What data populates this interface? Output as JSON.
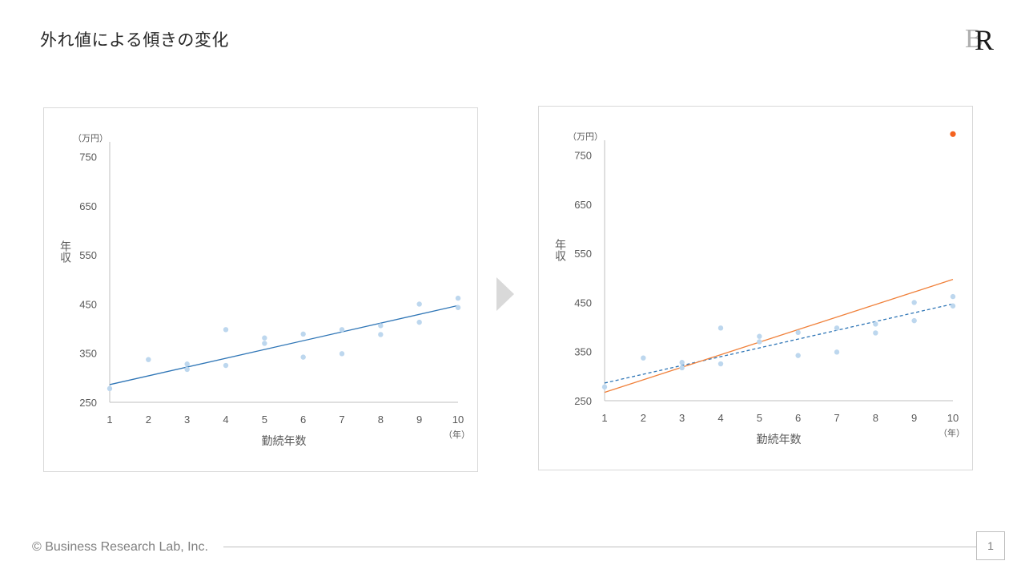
{
  "header": {
    "title": "外れ値による傾きの変化"
  },
  "logo": {
    "text": "R",
    "name": "brl-logo"
  },
  "footer": {
    "copyright": "© Business Research Lab, Inc.",
    "page": "1"
  },
  "colors": {
    "points": "#bdd7ee",
    "outlier": "#f4621f",
    "trend": "#2e75b6",
    "trend_outlier": "#f0803a",
    "axis": "#bfbfbf",
    "text": "#595959"
  },
  "chart_data": [
    {
      "type": "scatter",
      "title": "",
      "xlabel": "勤続年数",
      "ylabel": "年収",
      "x_unit": "（年）",
      "y_unit": "（万円）",
      "xlim": [
        1,
        10
      ],
      "ylim": [
        250,
        800
      ],
      "x_ticks": [
        1,
        2,
        3,
        4,
        5,
        6,
        7,
        8,
        9,
        10
      ],
      "y_ticks": [
        250,
        350,
        450,
        550,
        650,
        750
      ],
      "series": [
        {
          "role": "data",
          "points": [
            [
              1,
              278
            ],
            [
              2,
              337
            ],
            [
              3,
              328
            ],
            [
              3,
              317
            ],
            [
              4,
              398
            ],
            [
              4,
              325
            ],
            [
              5,
              381
            ],
            [
              5,
              370
            ],
            [
              6,
              389
            ],
            [
              6,
              342
            ],
            [
              7,
              398
            ],
            [
              7,
              349
            ],
            [
              8,
              406
            ],
            [
              8,
              388
            ],
            [
              9,
              450
            ],
            [
              9,
              413
            ],
            [
              10,
              462
            ],
            [
              10,
              443
            ]
          ]
        }
      ],
      "trendlines": [
        {
          "role": "fit",
          "style": "solid",
          "from": [
            1,
            286
          ],
          "to": [
            10,
            447
          ]
        }
      ]
    },
    {
      "type": "scatter",
      "title": "",
      "xlabel": "勤続年数",
      "ylabel": "年収",
      "x_unit": "（年）",
      "y_unit": "（万円）",
      "xlim": [
        1,
        10
      ],
      "ylim": [
        250,
        800
      ],
      "x_ticks": [
        1,
        2,
        3,
        4,
        5,
        6,
        7,
        8,
        9,
        10
      ],
      "y_ticks": [
        250,
        350,
        450,
        550,
        650,
        750
      ],
      "series": [
        {
          "role": "data",
          "points": [
            [
              1,
              278
            ],
            [
              2,
              337
            ],
            [
              3,
              328
            ],
            [
              3,
              317
            ],
            [
              4,
              398
            ],
            [
              4,
              325
            ],
            [
              5,
              381
            ],
            [
              5,
              370
            ],
            [
              6,
              389
            ],
            [
              6,
              342
            ],
            [
              7,
              398
            ],
            [
              7,
              349
            ],
            [
              8,
              406
            ],
            [
              8,
              388
            ],
            [
              9,
              450
            ],
            [
              9,
              413
            ],
            [
              10,
              462
            ],
            [
              10,
              443
            ]
          ]
        },
        {
          "role": "outlier",
          "points": [
            [
              10,
              793
            ]
          ]
        }
      ],
      "trendlines": [
        {
          "role": "fit",
          "style": "dashed",
          "from": [
            1,
            286
          ],
          "to": [
            10,
            447
          ]
        },
        {
          "role": "fit-with-outlier",
          "style": "solid",
          "from": [
            1,
            267
          ],
          "to": [
            10,
            497
          ]
        }
      ]
    }
  ]
}
